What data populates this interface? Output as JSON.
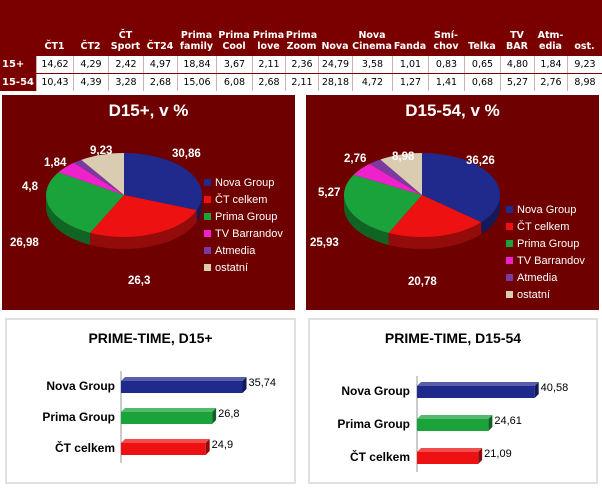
{
  "table": {
    "columns": [
      "ČT1",
      "ČT2",
      "ČT\nSport",
      "ČT24",
      "Prima\nfamily",
      "Prima\nCool",
      "Prima\nlove",
      "Prima\nZoom",
      "Nova",
      "Nova\nCinema",
      "Fanda",
      "Smí-\nchov",
      "Telka",
      "TV\nBAR",
      "Atm-\nedia",
      "ost."
    ],
    "rows": [
      {
        "label": "15+",
        "values": [
          "14,62",
          "4,29",
          "2,42",
          "4,97",
          "18,84",
          "3,67",
          "2,11",
          "2,36",
          "24,79",
          "3,58",
          "1,01",
          "0,83",
          "0,65",
          "4,80",
          "1,84",
          "9,23"
        ]
      },
      {
        "label": "15-54",
        "values": [
          "10,43",
          "4,39",
          "3,28",
          "2,68",
          "15,06",
          "6,08",
          "2,68",
          "2,11",
          "28,18",
          "4,72",
          "1,27",
          "1,41",
          "0,68",
          "5,27",
          "2,76",
          "8,98"
        ]
      }
    ]
  },
  "colors": {
    "panel_bg": "#6e0000",
    "nova": "#1f2a8c",
    "ct": "#ee1111",
    "prima": "#1aa33a",
    "barrandov": "#ee22cc",
    "atmedia": "#7a3aa0",
    "ostatni": "#d9ccb0"
  },
  "chart_data": [
    {
      "type": "pie",
      "title": "D15+, v %",
      "labels": [
        "Nova Group",
        "ČT celkem",
        "Prima Group",
        "TV Barrandov",
        "Atmedia",
        "ostatní"
      ],
      "values": [
        30.86,
        26.3,
        26.98,
        4.8,
        1.84,
        9.23
      ],
      "value_labels": [
        "30,86",
        "26,3",
        "26,98",
        "4,8",
        "1,84",
        "9,23"
      ],
      "legend": "right"
    },
    {
      "type": "pie",
      "title": "D15-54, v %",
      "labels": [
        "Nova Group",
        "ČT celkem",
        "Prima Group",
        "TV Barrandov",
        "Atmedia",
        "ostatní"
      ],
      "values": [
        36.26,
        20.78,
        25.93,
        5.27,
        2.76,
        8.98
      ],
      "value_labels": [
        "36,26",
        "20,78",
        "25,93",
        "5,27",
        "2,76",
        "8,98"
      ],
      "legend": "right"
    },
    {
      "type": "bar",
      "orientation": "horizontal",
      "title": "PRIME-TIME, D15+",
      "categories": [
        "Nova Group",
        "Prima Group",
        "ČT celkem"
      ],
      "values": [
        35.74,
        26.8,
        24.9
      ],
      "value_labels": [
        "35,74",
        "26,8",
        "24,9"
      ],
      "xlim": [
        0,
        40
      ]
    },
    {
      "type": "bar",
      "orientation": "horizontal",
      "title": "PRIME-TIME, D15-54",
      "categories": [
        "Nova Group",
        "Prima Group",
        "ČT celkem"
      ],
      "values": [
        40.58,
        24.61,
        21.09
      ],
      "value_labels": [
        "40,58",
        "24,61",
        "21,09"
      ],
      "xlim": [
        0,
        45
      ]
    }
  ]
}
